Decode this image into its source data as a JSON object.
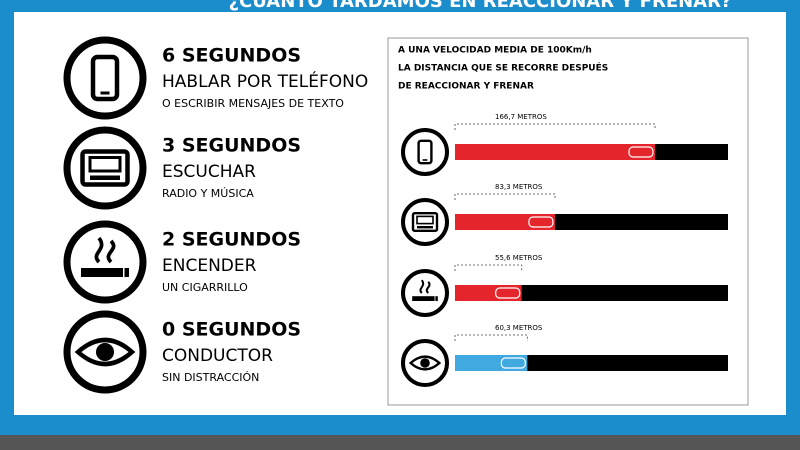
{
  "header": {
    "title": "¿CUÁNTO TARDAMOS EN REACCIONAR Y FRENAR?"
  },
  "items": [
    {
      "seconds": "6 SEGUNDOS",
      "action": "HABLAR POR TELÉFONO",
      "detail": "O ESCRIBIR MENSAJES DE TEXTO"
    },
    {
      "seconds": "3 SEGUNDOS",
      "action": "ESCUCHAR",
      "detail": "RADIO Y MÚSICA"
    },
    {
      "seconds": "2 SEGUNDOS",
      "action": "ENCENDER",
      "detail": "UN CIGARRILLO"
    },
    {
      "seconds": "0 SEGUNDOS",
      "action": "CONDUCTOR",
      "detail": "SIN DISTRACCIÓN"
    }
  ],
  "chart_data": {
    "type": "bar",
    "title_lines": [
      "A UNA VELOCIDAD MEDIA DE 100Km/h",
      "LA DISTANCIA QUE SE RECORRE DESPUÉS",
      "DE REACCIONAR Y FRENAR"
    ],
    "categories": [
      null,
      null,
      null,
      null
    ],
    "values": [
      166.7,
      83.3,
      55.6,
      60.3
    ],
    "value_labels": [
      "166,7 METROS",
      "83,3 METROS",
      "55,6 METROS",
      "60,3 METROS"
    ],
    "colors": [
      "#e4252b",
      "#e4252b",
      "#e4252b",
      "#3fa9e0"
    ]
  }
}
